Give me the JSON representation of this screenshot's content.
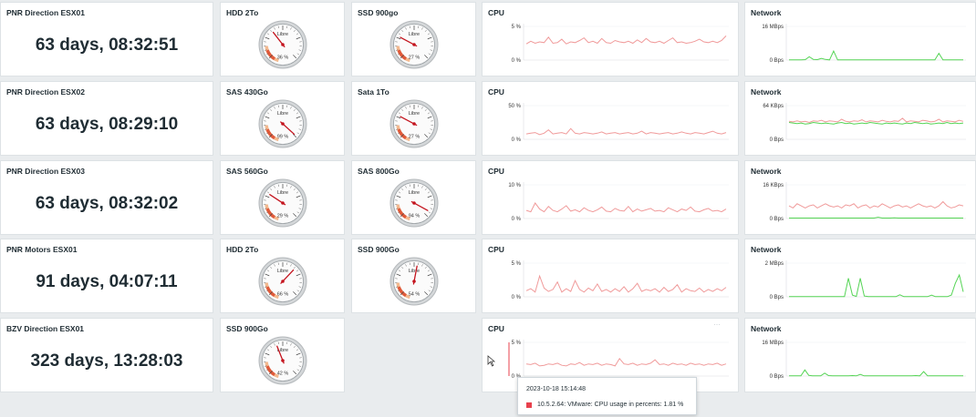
{
  "hosts": [
    {
      "name": "PNR Direction ESX01",
      "uptime": "63 days, 08:32:51"
    },
    {
      "name": "PNR Direction ESX02",
      "uptime": "63 days, 08:29:10"
    },
    {
      "name": "PNR Direction ESX03",
      "uptime": "63 days, 08:32:02"
    },
    {
      "name": "PNR Motors ESX01",
      "uptime": "91 days, 04:07:11"
    },
    {
      "name": "BZV Direction ESX01",
      "uptime": "323 days, 13:28:03"
    }
  ],
  "gauges": [
    [
      {
        "title": "HDD 2To",
        "label": "Libre",
        "pct": "36 %",
        "value": 36
      },
      {
        "title": "SSD 900go",
        "label": "Libre",
        "pct": "27 %",
        "value": 27
      }
    ],
    [
      {
        "title": "SAS 430Go",
        "label": "Libre",
        "pct": "99 %",
        "value": 99
      },
      {
        "title": "Sata 1To",
        "label": "Libre",
        "pct": "27 %",
        "value": 27
      }
    ],
    [
      {
        "title": "SAS 560Go",
        "label": "Libre",
        "pct": "29 %",
        "value": 29
      },
      {
        "title": "SAS 800Go",
        "label": "Libre",
        "pct": "94 %",
        "value": 94
      }
    ],
    [
      {
        "title": "HDD 2To",
        "label": "Libre",
        "pct": "66 %",
        "value": 66
      },
      {
        "title": "SSD 900Go",
        "label": "Libre",
        "pct": "54 %",
        "value": 54
      }
    ],
    [
      {
        "title": "SSD 900Go",
        "label": "Libre",
        "pct": "42 %",
        "value": 42
      }
    ]
  ],
  "cpu": {
    "title": "CPU",
    "color": "#f09a9a",
    "ymax": [
      "5 %",
      "50 %",
      "10 %",
      "5 %",
      "5 %"
    ],
    "ymin": "0 %",
    "series": [
      [
        2.4,
        2.8,
        2.5,
        2.7,
        2.6,
        3.4,
        2.5,
        2.6,
        3.1,
        2.4,
        2.7,
        2.6,
        2.9,
        3.3,
        2.6,
        2.8,
        2.5,
        3.2,
        2.6,
        2.5,
        2.9,
        2.7,
        2.6,
        2.8,
        2.5,
        3.0,
        2.6,
        3.2,
        2.7,
        2.6,
        2.8,
        2.5,
        2.9,
        3.3,
        2.6,
        2.7,
        2.5,
        2.6,
        2.8,
        3.1,
        2.7,
        2.6,
        2.8,
        2.6,
        2.9,
        3.6
      ],
      [
        8,
        9,
        10,
        7,
        9,
        14,
        8,
        9,
        10,
        8,
        16,
        9,
        8,
        10,
        9,
        8,
        9,
        11,
        8,
        9,
        10,
        8,
        9,
        10,
        8,
        9,
        12,
        8,
        10,
        9,
        8,
        9,
        10,
        8,
        9,
        11,
        9,
        8,
        10,
        9,
        8,
        10,
        12,
        9,
        8,
        10
      ],
      [
        2.4,
        2.0,
        4.6,
        2.8,
        2.0,
        3.6,
        2.4,
        2.0,
        2.8,
        3.8,
        2.2,
        2.6,
        2.0,
        3.2,
        2.4,
        2.0,
        2.6,
        3.4,
        2.2,
        2.0,
        3.0,
        2.4,
        2.2,
        3.6,
        2.0,
        2.8,
        2.2,
        2.6,
        3.0,
        2.2,
        2.4,
        2.0,
        3.2,
        2.6,
        2.0,
        2.8,
        2.4,
        3.4,
        2.2,
        2.0,
        2.6,
        3.0,
        2.2,
        2.4,
        2.0,
        2.8
      ],
      [
        0.9,
        1.2,
        0.7,
        3.1,
        1.3,
        0.8,
        1.1,
        2.2,
        0.7,
        1.2,
        0.8,
        2.4,
        1.1,
        0.7,
        1.3,
        0.9,
        1.9,
        0.8,
        1.1,
        0.7,
        1.2,
        0.8,
        1.5,
        0.7,
        1.2,
        2.0,
        0.8,
        1.1,
        0.9,
        1.2,
        0.7,
        1.4,
        0.8,
        1.1,
        1.8,
        0.7,
        1.2,
        0.9,
        0.8,
        1.3,
        0.7,
        1.1,
        0.8,
        1.2,
        0.9,
        1.4
      ],
      [
        1.8,
        1.7,
        1.9,
        1.5,
        1.6,
        1.8,
        1.7,
        1.9,
        1.6,
        1.5,
        1.8,
        1.7,
        2.0,
        1.6,
        1.8,
        1.7,
        1.9,
        1.6,
        1.8,
        1.7,
        1.5,
        2.6,
        1.8,
        1.7,
        1.9,
        1.6,
        1.8,
        1.7,
        1.9,
        2.4,
        1.7,
        1.8,
        1.6,
        1.9,
        1.7,
        1.8,
        1.6,
        1.9,
        1.7,
        1.8,
        1.6,
        1.8,
        1.7,
        1.9,
        1.6,
        1.8
      ]
    ],
    "ranges": [
      5,
      50,
      10,
      5,
      5
    ]
  },
  "network": {
    "title": "Network",
    "ymax": [
      "16 MBps",
      "64 KBps",
      "16 KBps",
      "2 MBps",
      "16 MBps"
    ],
    "ymin": "0 Bps",
    "in_color": "#f09a9a",
    "out_color": "#55d455",
    "ranges": [
      16,
      64,
      16,
      2,
      16
    ],
    "series": [
      {
        "in": [],
        "out": [
          0.1,
          0.1,
          0.1,
          0.1,
          0.2,
          1.6,
          0.3,
          0.2,
          0.8,
          0.3,
          0.1,
          4.3,
          0.1,
          0.1,
          0.1,
          0.1,
          0.1,
          0.1,
          0.1,
          0.1,
          0.1,
          0.1,
          0.1,
          0.1,
          0.1,
          0.1,
          0.1,
          0.1,
          0.1,
          0.1,
          0.1,
          0.1,
          0.1,
          0.1,
          0.1,
          0.1,
          0.1,
          3.2,
          0.1,
          0.1,
          0.1,
          0.1,
          0.1,
          0.1
        ]
      },
      {
        "in": [
          34,
          33,
          35,
          33,
          34,
          32,
          35,
          34,
          36,
          33,
          35,
          34,
          33,
          38,
          34,
          33,
          35,
          34,
          37,
          33,
          35,
          34,
          33,
          36,
          34,
          33,
          35,
          34,
          40,
          33,
          35,
          34,
          33,
          36,
          35,
          33,
          34,
          38,
          33,
          35,
          34,
          33,
          36,
          34
        ],
        "out": [
          32,
          31,
          30,
          31,
          29,
          30,
          32,
          31,
          30,
          31,
          30,
          29,
          31,
          32,
          30,
          31,
          29,
          30,
          31,
          30,
          32,
          31,
          30,
          29,
          31,
          30,
          31,
          30,
          29,
          31,
          30,
          32,
          31,
          30,
          31,
          29,
          30,
          31,
          30,
          32,
          30,
          31,
          30,
          31
        ]
      },
      {
        "in": [
          6,
          5,
          7,
          6,
          5,
          6,
          6.5,
          5,
          6,
          7,
          6,
          5.5,
          6,
          5,
          6.5,
          6,
          7,
          5,
          6,
          6.5,
          5,
          6,
          5.5,
          7,
          6,
          5,
          6,
          6.5,
          5.5,
          6,
          5,
          6,
          7,
          6,
          5.5,
          6,
          5,
          6,
          8,
          6,
          5,
          5.5,
          6.5,
          6
        ],
        "out": [
          0.2,
          0.2,
          0.2,
          0.2,
          0.2,
          0.2,
          0.2,
          0.2,
          0.2,
          0.2,
          0.2,
          0.2,
          0.2,
          0.2,
          0.2,
          0.2,
          0.2,
          0.2,
          0.2,
          0.2,
          0.2,
          0.2,
          0.6,
          0.2,
          0.2,
          0.2,
          0.3,
          0.2,
          0.2,
          0.2,
          0.2,
          0.2,
          0.2,
          0.2,
          0.2,
          0.2,
          0.2,
          0.2,
          0.2,
          0.2,
          0.2,
          0.2,
          0.2,
          0.2
        ]
      },
      {
        "in": [],
        "out": [
          0.01,
          0.01,
          0.01,
          0.01,
          0.01,
          0.01,
          0.01,
          0.01,
          0.01,
          0.01,
          0.01,
          0.01,
          0.01,
          0.01,
          0.01,
          1.1,
          0.1,
          0.02,
          1.1,
          0.05,
          0.01,
          0.01,
          0.01,
          0.01,
          0.01,
          0.01,
          0.01,
          0.01,
          0.12,
          0.01,
          0.01,
          0.01,
          0.01,
          0.01,
          0.01,
          0.01,
          0.1,
          0.01,
          0.01,
          0.01,
          0.01,
          0.1,
          0.8,
          1.3,
          0.3
        ]
      },
      {
        "in": [],
        "out": [
          0.1,
          0.1,
          0.1,
          0.1,
          2.9,
          0.3,
          0.1,
          0.1,
          0.1,
          1.4,
          0.2,
          0.1,
          0.1,
          0.1,
          0.1,
          0.1,
          0.2,
          0.1,
          0.8,
          0.1,
          0.1,
          0.1,
          0.1,
          0.1,
          0.1,
          0.1,
          0.1,
          0.1,
          0.1,
          0.1,
          0.1,
          0.1,
          0.2,
          0.1,
          2.1,
          0.1,
          0.1,
          0.1,
          0.1,
          0.1,
          0.1,
          0.1,
          0.1,
          0.1,
          0.1
        ]
      }
    ]
  },
  "tooltip": {
    "time": "2023-10-18 15:14:48",
    "text": "10.5.2.64: VMware: CPU usage in percents: 1.81 %",
    "swatch": "#e8414d"
  }
}
